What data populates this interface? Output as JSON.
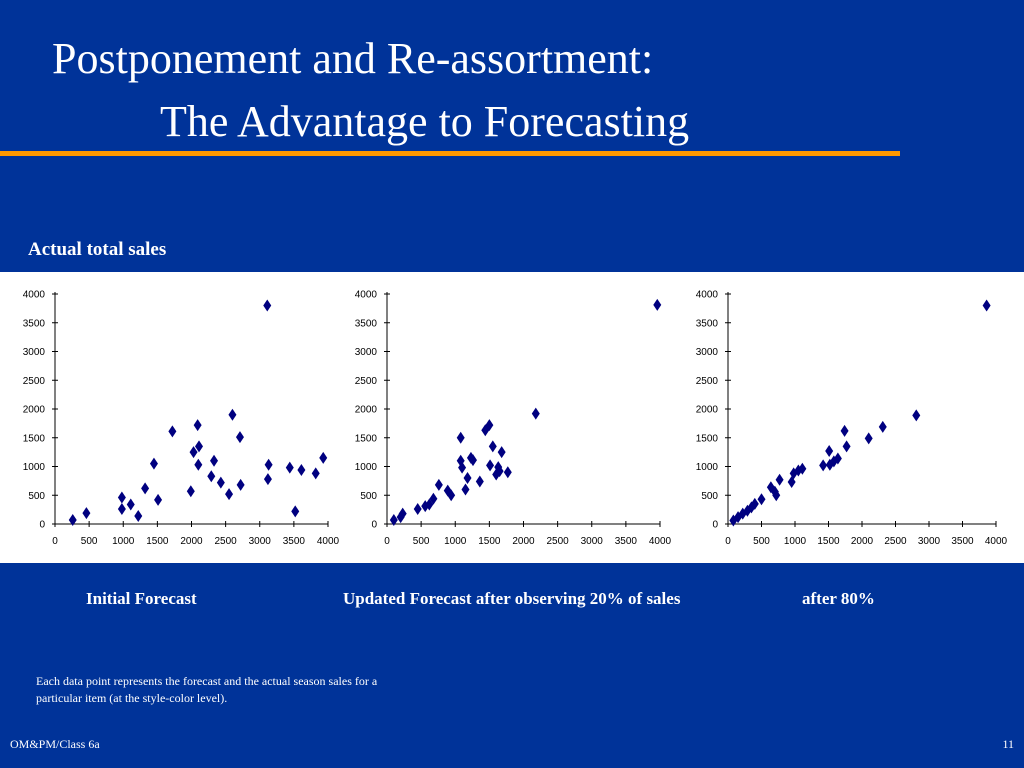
{
  "slide": {
    "title_line1": "Postponement and Re-assortment:",
    "title_line2": "The Advantage to Forecasting",
    "subtitle": "Actual total sales",
    "captions": [
      "Initial Forecast",
      "Updated Forecast after observing 20% of sales",
      "after 80%"
    ],
    "note": "Each data point represents the forecast and the actual season sales for a particular item (at the style-color level).",
    "footer_left": "OM&PM/Class 6a",
    "page_number": "11"
  },
  "colors": {
    "background": "#003399",
    "accent_rule": "#ff9900",
    "marker": "#000080",
    "text": "#ffffff"
  },
  "chart_data": [
    {
      "type": "scatter",
      "title": "",
      "xlabel": "",
      "ylabel": "",
      "xlim": [
        0,
        4000
      ],
      "ylim": [
        0,
        4000
      ],
      "xticks": [
        0,
        500,
        1000,
        1500,
        2000,
        2500,
        3000,
        3500,
        4000
      ],
      "yticks": [
        0,
        500,
        1000,
        1500,
        2000,
        2500,
        3000,
        3500,
        4000
      ],
      "grid": false,
      "x": [
        260,
        460,
        980,
        980,
        1110,
        1220,
        1320,
        1450,
        1510,
        1720,
        1990,
        2030,
        2090,
        2100,
        2110,
        2290,
        2330,
        2430,
        2550,
        2600,
        2710,
        2720,
        3110,
        3120,
        3130,
        3440,
        3520,
        3610,
        3820,
        3930
      ],
      "y": [
        70,
        190,
        460,
        260,
        340,
        140,
        620,
        1050,
        420,
        1610,
        570,
        1250,
        1720,
        1030,
        1350,
        830,
        1100,
        720,
        520,
        1900,
        1510,
        680,
        3800,
        780,
        1030,
        980,
        220,
        940,
        880,
        1150
      ]
    },
    {
      "type": "scatter",
      "title": "",
      "xlabel": "",
      "ylabel": "",
      "xlim": [
        0,
        4000
      ],
      "ylim": [
        0,
        4000
      ],
      "xticks": [
        0,
        500,
        1000,
        1500,
        2000,
        2500,
        3000,
        3500,
        4000
      ],
      "yticks": [
        0,
        500,
        1000,
        1500,
        2000,
        2500,
        3000,
        3500,
        4000
      ],
      "grid": false,
      "x": [
        100,
        200,
        230,
        450,
        560,
        620,
        680,
        760,
        890,
        940,
        1080,
        1080,
        1100,
        1150,
        1180,
        1230,
        1260,
        1360,
        1440,
        1500,
        1510,
        1550,
        1600,
        1630,
        1650,
        1680,
        1770,
        2180,
        3960
      ],
      "y": [
        70,
        120,
        180,
        260,
        310,
        340,
        440,
        680,
        580,
        500,
        1500,
        1100,
        980,
        600,
        800,
        1150,
        1110,
        740,
        1630,
        1720,
        1020,
        1350,
        860,
        990,
        920,
        1250,
        900,
        1920,
        3810
      ]
    },
    {
      "type": "scatter",
      "title": "",
      "xlabel": "",
      "ylabel": "",
      "xlim": [
        0,
        4000
      ],
      "ylim": [
        0,
        4000
      ],
      "xticks": [
        0,
        500,
        1000,
        1500,
        2000,
        2500,
        3000,
        3500,
        4000
      ],
      "yticks": [
        0,
        500,
        1000,
        1500,
        2000,
        2500,
        3000,
        3500,
        4000
      ],
      "grid": false,
      "x": [
        80,
        150,
        220,
        290,
        350,
        400,
        500,
        640,
        700,
        720,
        770,
        950,
        980,
        1050,
        1110,
        1420,
        1510,
        1520,
        1580,
        1640,
        1740,
        1770,
        2100,
        2310,
        2810,
        3860
      ],
      "y": [
        60,
        120,
        180,
        230,
        290,
        350,
        430,
        640,
        560,
        500,
        770,
        730,
        880,
        930,
        960,
        1020,
        1270,
        1030,
        1090,
        1140,
        1620,
        1350,
        1490,
        1690,
        1890,
        3800
      ]
    }
  ]
}
